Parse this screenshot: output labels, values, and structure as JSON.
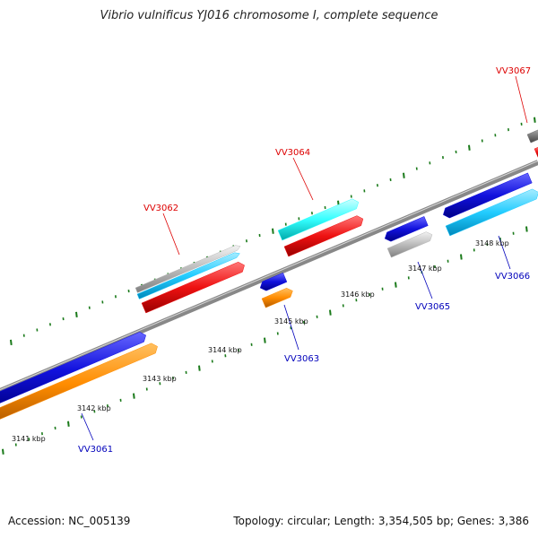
{
  "title": "Vibrio vulnificus YJ016 chromosome I, complete sequence",
  "footer": {
    "accession": "Accession: NC_005139",
    "topology": "Topology: circular; Length: 3,354,505 bp; Genes: 3,386"
  },
  "colors": {
    "backbone": "#888888",
    "tick": "#1a7a1a",
    "label_forward": "#dd0000",
    "label_reverse": "#0000bb",
    "blue": "#1111dd",
    "orange": "#ff8c00",
    "red": "#ee1111",
    "cyan": "#22ccff",
    "aqua": "#33ffff",
    "silver": "#bbbbbb",
    "dark_gray": "#777777"
  },
  "ticks": [
    {
      "label": "3141 kbp"
    },
    {
      "label": "3142 kbp"
    },
    {
      "label": "3143 kbp"
    },
    {
      "label": "3144 kbp"
    },
    {
      "label": "3145 kbp"
    },
    {
      "label": "3146 kbp"
    },
    {
      "label": "3147 kbp"
    },
    {
      "label": "3148 kbp"
    }
  ],
  "gene_labels": [
    {
      "text": "VV3061",
      "strand": "reverse"
    },
    {
      "text": "VV3062",
      "strand": "forward"
    },
    {
      "text": "VV3063",
      "strand": "reverse"
    },
    {
      "text": "VV3064",
      "strand": "forward"
    },
    {
      "text": "VV3065",
      "strand": "reverse"
    },
    {
      "text": "VV3066",
      "strand": "reverse"
    },
    {
      "text": "VV3067",
      "strand": "forward"
    }
  ]
}
